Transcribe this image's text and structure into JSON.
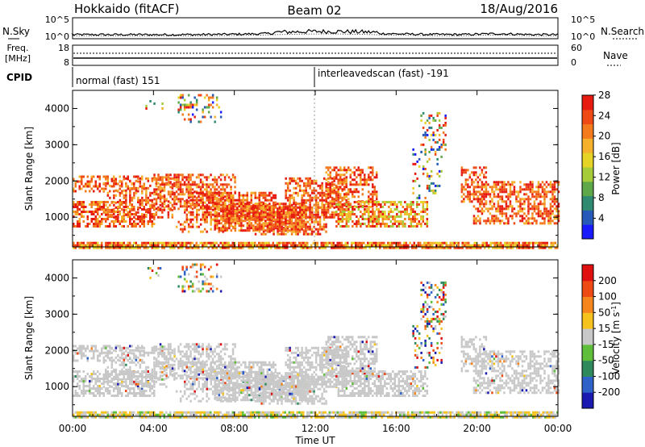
{
  "header": {
    "title": "Hokkaido (fitACF)",
    "beam": "Beam 02",
    "date": "18/Aug/2016"
  },
  "noise_panel": {
    "left_label": "N.Sky",
    "right_label": "N.Search",
    "left_ticks": [
      "10^5",
      "10^0"
    ],
    "right_ticks": [
      "10^5",
      "10^0"
    ]
  },
  "freq_panel": {
    "left_label_1": "Freq.",
    "left_label_2": "[MHz]",
    "left_ticks": [
      "18",
      "8"
    ],
    "right_label": "Nave",
    "right_ticks": [
      "60",
      "0"
    ]
  },
  "cpid_panel": {
    "label": "CPID",
    "segments": [
      {
        "text": "normal (fast) 151",
        "start_hour": 0
      },
      {
        "text": "interleavedscan (fast) -191",
        "start_hour": 12
      }
    ]
  },
  "chart_data": [
    {
      "type": "heatmap",
      "name": "power",
      "ylabel": "Slant Range [km]",
      "ylim": [
        180,
        4500
      ],
      "yticks": [
        "1000",
        "2000",
        "3000",
        "4000"
      ],
      "xlabel": "",
      "xlim": [
        0,
        24
      ],
      "colorbar": {
        "label": "Power [dB]",
        "ticks": [
          "4",
          "8",
          "12",
          "16",
          "20",
          "24",
          "28"
        ],
        "colors": [
          "#1a1aff",
          "#2659b8",
          "#2e8a70",
          "#5fa84a",
          "#a7cc3a",
          "#e5d426",
          "#f5b02c",
          "#f47a1e",
          "#ef4a16",
          "#e61a0f"
        ]
      }
    },
    {
      "type": "heatmap",
      "name": "velocity",
      "ylabel": "Slant Range [km]",
      "ylim": [
        180,
        4500
      ],
      "yticks": [
        "1000",
        "2000",
        "3000",
        "4000"
      ],
      "xlabel": "Time UT",
      "xlim": [
        0,
        24
      ],
      "xticks": [
        "00:00",
        "04:00",
        "08:00",
        "12:00",
        "16:00",
        "20:00",
        "00:00"
      ],
      "colorbar": {
        "label_main": "Velocity [m s",
        "label_sup": "-1",
        "label_end": "]",
        "ticks": [
          "200",
          "100",
          "50",
          "15",
          "-15",
          "-50",
          "-100",
          "-200"
        ],
        "colors": [
          "#1a1ab0",
          "#2e62c8",
          "#2e8a5c",
          "#5fbf3a",
          "#c8c8c8",
          "#f5c21e",
          "#f5861e",
          "#ee4a16",
          "#e01010"
        ]
      }
    }
  ]
}
